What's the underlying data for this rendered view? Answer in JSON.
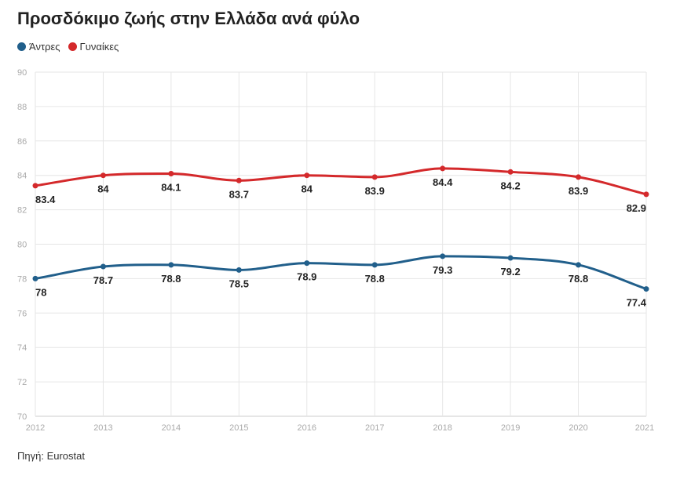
{
  "title": "Προσδόκιμο ζωής στην Ελλάδα ανά φύλο",
  "source": "Πηγή: Eurostat",
  "legend": [
    {
      "label": "Άντρες",
      "color": "#215f8b"
    },
    {
      "label": "Γυναίκες",
      "color": "#d4292b"
    }
  ],
  "chart_data": {
    "type": "line",
    "title": "Προσδόκιμο ζωής στην Ελλάδα ανά φύλο",
    "x": [
      2012,
      2013,
      2014,
      2015,
      2016,
      2017,
      2018,
      2019,
      2020,
      2021
    ],
    "series": [
      {
        "name": "Άντρες",
        "color": "#215f8b",
        "values": [
          78,
          78.7,
          78.8,
          78.5,
          78.9,
          78.8,
          79.3,
          79.2,
          78.8,
          77.4
        ]
      },
      {
        "name": "Γυναίκες",
        "color": "#d4292b",
        "values": [
          83.4,
          84,
          84.1,
          83.7,
          84,
          83.9,
          84.4,
          84.2,
          83.9,
          82.9
        ]
      }
    ],
    "ylim": [
      70,
      90
    ],
    "yticks": [
      70,
      72,
      74,
      76,
      78,
      80,
      82,
      84,
      86,
      88,
      90
    ],
    "grid": true,
    "legend_position": "top-left"
  }
}
